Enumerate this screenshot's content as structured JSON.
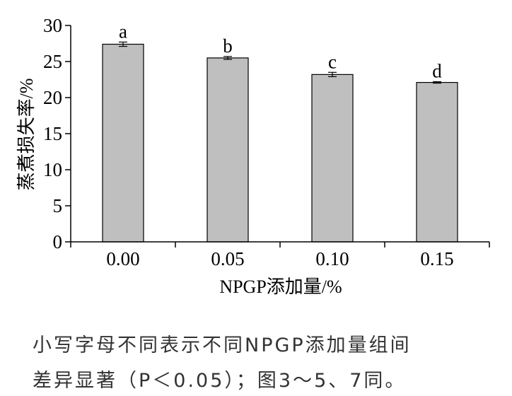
{
  "chart_data": {
    "type": "bar",
    "categories": [
      "0.00",
      "0.05",
      "0.10",
      "0.15"
    ],
    "values": [
      27.4,
      25.5,
      23.2,
      22.1
    ],
    "errors": [
      0.3,
      0.2,
      0.3,
      0.1
    ],
    "significance": [
      "a",
      "b",
      "c",
      "d"
    ],
    "xlabel": "NPGP添加量/%",
    "ylabel": "蒸煮损失率/%",
    "ylim": [
      0,
      30
    ],
    "yticks": [
      "0",
      "5",
      "10",
      "15",
      "20",
      "25",
      "30"
    ],
    "grid": false,
    "bar_color": "#bfbfbf",
    "bar_edge_color": "#000000"
  },
  "caption": {
    "line1": "小写字母不同表示不同NPGP添加量组间",
    "line2": "差异显著（P＜0.05）；图3～5、7同。"
  }
}
